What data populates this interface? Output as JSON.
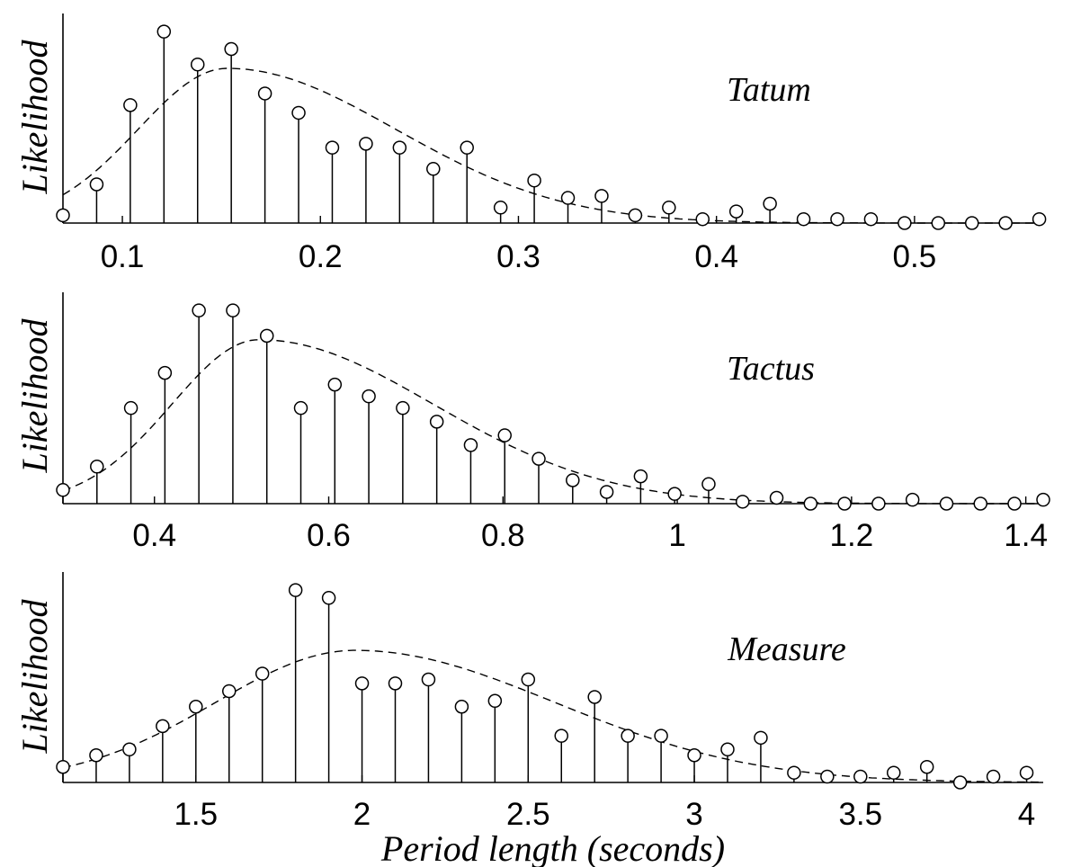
{
  "figure": {
    "xlabel": "Period length (seconds)"
  },
  "chart_data": [
    {
      "type": "stem",
      "title": "Tatum",
      "ylabel": "Likelihood",
      "xlim": [
        0.07,
        0.565
      ],
      "ylim": [
        0,
        1.0
      ],
      "ticks": [
        0.1,
        0.2,
        0.3,
        0.4,
        0.5
      ],
      "tick_labels": [
        "0.1",
        "0.2",
        "0.3",
        "0.4",
        "0.5"
      ],
      "x": [
        0.07,
        0.087,
        0.104,
        0.121,
        0.138,
        0.155,
        0.172,
        0.189,
        0.206,
        0.223,
        0.24,
        0.257,
        0.274,
        0.291,
        0.308,
        0.325,
        0.342,
        0.359,
        0.376,
        0.393,
        0.41,
        0.427,
        0.444,
        0.461,
        0.478,
        0.495,
        0.512,
        0.529,
        0.546,
        0.563
      ],
      "y": [
        0.04,
        0.2,
        0.61,
        0.99,
        0.82,
        0.9,
        0.67,
        0.57,
        0.39,
        0.41,
        0.39,
        0.28,
        0.39,
        0.08,
        0.22,
        0.13,
        0.14,
        0.04,
        0.08,
        0.02,
        0.06,
        0.1,
        0.02,
        0.02,
        0.02,
        0.0,
        0.0,
        0.0,
        0.0,
        0.02
      ],
      "fit_curve": {
        "style": "dashed",
        "peak_x": 0.153,
        "peak_y": 0.8,
        "sigma_left": 0.045,
        "sigma_right": 0.085
      }
    },
    {
      "type": "stem",
      "title": "Tactus",
      "ylabel": "Likelihood",
      "xlim": [
        0.295,
        1.42
      ],
      "ylim": [
        0,
        1.0
      ],
      "ticks": [
        0.4,
        0.6,
        0.8,
        1.0,
        1.2,
        1.4
      ],
      "tick_labels": [
        "0.4",
        "0.6",
        "0.8",
        "1",
        "1.2",
        "1.4"
      ],
      "x": [
        0.295,
        0.334,
        0.373,
        0.412,
        0.451,
        0.49,
        0.529,
        0.568,
        0.607,
        0.646,
        0.685,
        0.724,
        0.763,
        0.802,
        0.841,
        0.88,
        0.919,
        0.958,
        0.997,
        1.036,
        1.075,
        1.114,
        1.153,
        1.192,
        1.231,
        1.27,
        1.309,
        1.348,
        1.387,
        1.42
      ],
      "y": [
        0.07,
        0.19,
        0.49,
        0.67,
        0.99,
        0.99,
        0.86,
        0.49,
        0.61,
        0.55,
        0.49,
        0.42,
        0.3,
        0.35,
        0.23,
        0.12,
        0.06,
        0.14,
        0.05,
        0.1,
        0.01,
        0.03,
        0.0,
        0.0,
        0.0,
        0.02,
        0.0,
        0.0,
        0.0,
        0.02
      ],
      "fit_curve": {
        "style": "dashed",
        "peak_x": 0.52,
        "peak_y": 0.84,
        "sigma_left": 0.1,
        "sigma_right": 0.2
      }
    },
    {
      "type": "stem",
      "title": "Measure",
      "ylabel": "Likelihood",
      "xlim": [
        1.1,
        4.05
      ],
      "ylim": [
        0,
        1.0
      ],
      "ticks": [
        1.5,
        2.0,
        2.5,
        3.0,
        3.5,
        4.0
      ],
      "tick_labels": [
        "1.5",
        "2",
        "2.5",
        "3",
        "3.5",
        "4"
      ],
      "x": [
        1.1,
        1.2,
        1.3,
        1.4,
        1.5,
        1.6,
        1.7,
        1.8,
        1.9,
        2.0,
        2.1,
        2.2,
        2.3,
        2.4,
        2.5,
        2.6,
        2.7,
        2.8,
        2.9,
        3.0,
        3.1,
        3.2,
        3.3,
        3.4,
        3.5,
        3.6,
        3.7,
        3.8,
        3.9,
        4.0
      ],
      "y": [
        0.08,
        0.14,
        0.17,
        0.29,
        0.39,
        0.47,
        0.56,
        0.99,
        0.95,
        0.51,
        0.51,
        0.53,
        0.39,
        0.42,
        0.53,
        0.24,
        0.44,
        0.24,
        0.24,
        0.14,
        0.17,
        0.23,
        0.05,
        0.03,
        0.03,
        0.05,
        0.08,
        0.0,
        0.03,
        0.05
      ],
      "fit_curve": {
        "style": "dashed",
        "peak_x": 1.98,
        "peak_y": 0.68,
        "sigma_left": 0.42,
        "sigma_right": 0.6
      }
    }
  ]
}
